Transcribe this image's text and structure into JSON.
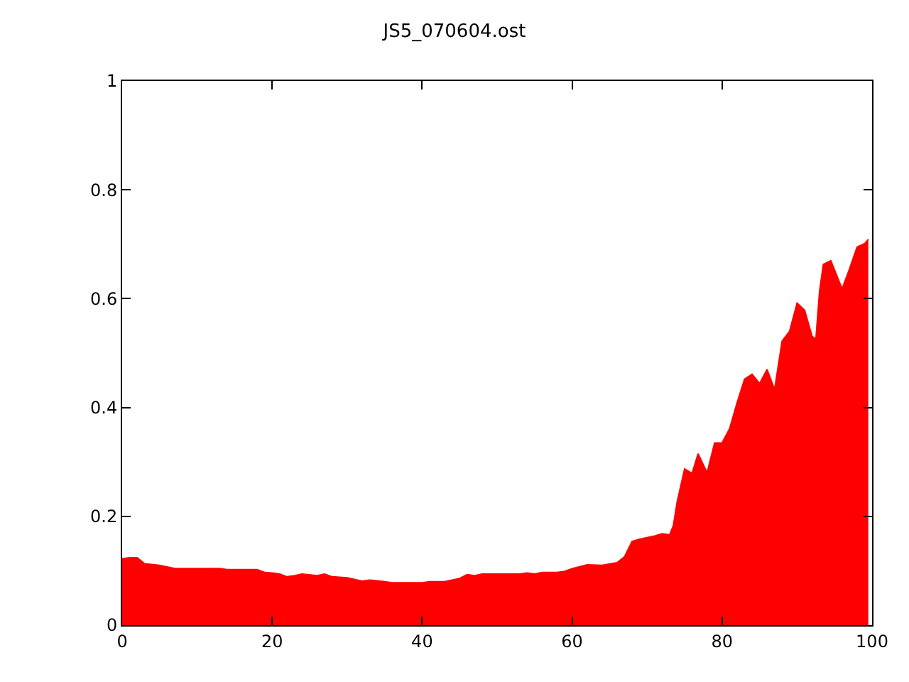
{
  "chart_data": {
    "type": "area",
    "title": "JS5_070604.ost",
    "x": [
      0,
      1,
      2,
      3,
      5,
      7,
      10,
      13,
      14,
      18,
      19,
      20,
      21,
      22,
      23,
      24,
      26,
      27,
      28,
      30,
      32,
      33,
      35,
      36,
      40,
      41,
      43,
      44,
      45,
      46,
      47,
      48,
      53,
      54,
      55,
      56,
      58,
      59,
      60,
      62,
      64,
      66,
      67,
      68,
      69,
      70,
      71,
      72,
      73,
      73.5,
      74,
      75,
      76,
      76.8,
      78,
      79,
      80,
      81,
      82,
      83,
      84,
      85,
      86,
      87,
      88,
      89,
      90,
      91,
      92,
      92.5,
      93,
      93.5,
      94.5,
      96,
      97,
      98,
      99,
      99.5
    ],
    "series": [
      {
        "color": "#ff0000",
        "values": [
          0.122,
          0.124,
          0.124,
          0.113,
          0.11,
          0.104,
          0.104,
          0.104,
          0.102,
          0.102,
          0.097,
          0.096,
          0.094,
          0.089,
          0.091,
          0.094,
          0.091,
          0.094,
          0.089,
          0.087,
          0.081,
          0.083,
          0.08,
          0.078,
          0.078,
          0.08,
          0.08,
          0.083,
          0.086,
          0.093,
          0.091,
          0.094,
          0.094,
          0.096,
          0.094,
          0.097,
          0.097,
          0.099,
          0.104,
          0.111,
          0.11,
          0.115,
          0.126,
          0.154,
          0.158,
          0.161,
          0.164,
          0.168,
          0.166,
          0.183,
          0.226,
          0.287,
          0.279,
          0.315,
          0.28,
          0.335,
          0.335,
          0.361,
          0.409,
          0.452,
          0.461,
          0.444,
          0.47,
          0.433,
          0.522,
          0.54,
          0.592,
          0.579,
          0.531,
          0.525,
          0.614,
          0.663,
          0.67,
          0.618,
          0.655,
          0.695,
          0.701,
          0.709
        ]
      }
    ],
    "xlim": [
      0,
      100
    ],
    "xticks": [
      0,
      20,
      40,
      60,
      80,
      100
    ],
    "ylim": [
      0,
      1
    ],
    "yticks": [
      0,
      0.2,
      0.4,
      0.6,
      0.8,
      1
    ]
  }
}
